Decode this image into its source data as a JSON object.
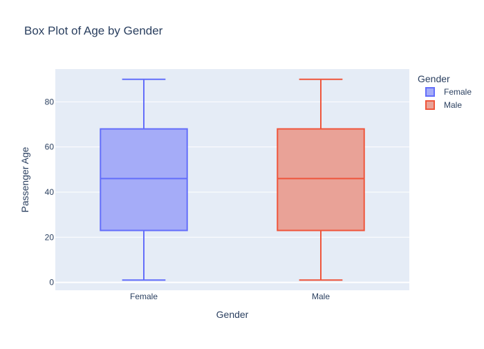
{
  "chart_data": {
    "type": "box",
    "title": "Box Plot of Age by Gender",
    "xlabel": "Gender",
    "ylabel": "Passenger Age",
    "categories": [
      "Female",
      "Male"
    ],
    "ylim": [
      -3.5,
      94.5
    ],
    "yticks": [
      0,
      20,
      40,
      60,
      80
    ],
    "grid": true,
    "legend": {
      "title": "Gender",
      "placement": "right",
      "entries": [
        "Female",
        "Male"
      ]
    },
    "series": [
      {
        "name": "Female",
        "category": "Female",
        "min": 1,
        "q1": 23,
        "median": 46,
        "q3": 68,
        "max": 90,
        "color": "#636EFA",
        "fill": "#A5ACF8"
      },
      {
        "name": "Male",
        "category": "Male",
        "min": 1,
        "q1": 23,
        "median": 46,
        "q3": 68,
        "max": 90,
        "color": "#EF553B",
        "fill": "#E9A297"
      }
    ],
    "colors": {
      "plot_background": "#E5ECF6",
      "gridline": "#FFFFFF",
      "text": "#2A3F5F"
    }
  }
}
